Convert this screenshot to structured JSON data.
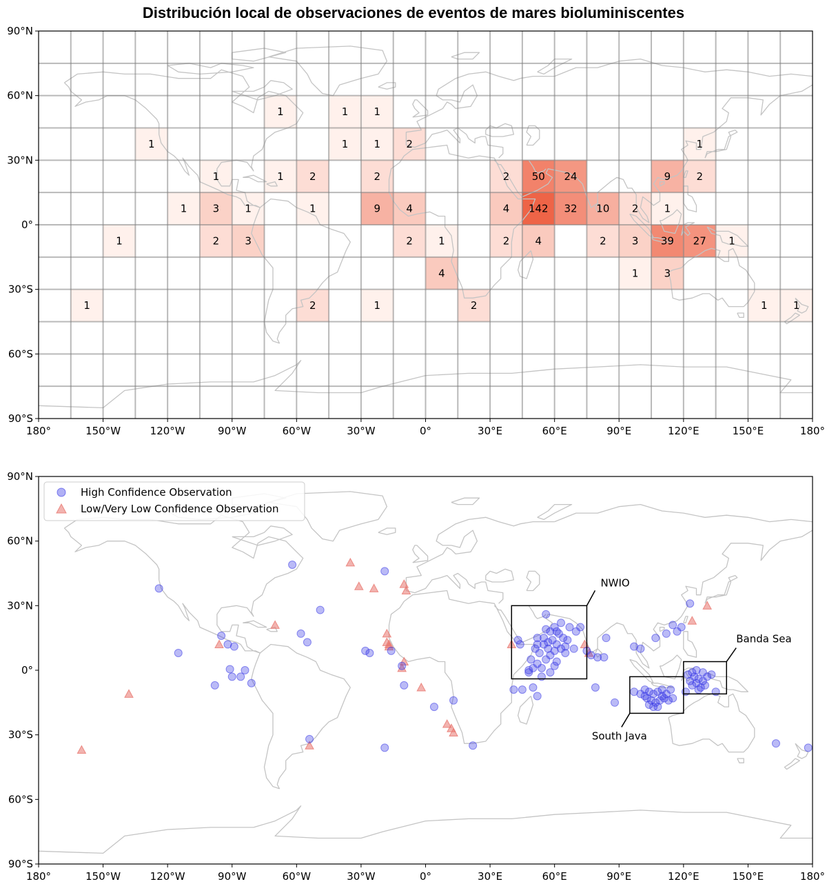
{
  "title": "Distribución local de observaciones de eventos de mares bioluminiscentes",
  "axes": {
    "x_ticks": [
      "180°",
      "150°W",
      "120°W",
      "90°W",
      "60°W",
      "30°W",
      "0°",
      "30°E",
      "60°E",
      "90°E",
      "120°E",
      "150°E",
      "180°"
    ],
    "x_tick_values": [
      -180,
      -150,
      -120,
      -90,
      -60,
      -30,
      0,
      30,
      60,
      90,
      120,
      150,
      180
    ],
    "y_ticks": [
      "90°N",
      "60°N",
      "30°N",
      "0°",
      "30°S",
      "60°S",
      "90°S"
    ],
    "y_tick_values": [
      90,
      60,
      30,
      0,
      -30,
      -60,
      -90
    ],
    "xlim": [
      -180,
      180
    ],
    "ylim": [
      -90,
      90
    ]
  },
  "colors": {
    "frame": "#000000",
    "coastline": "#c4c4c4",
    "grid": "#999999",
    "heat_low": "#fff1ec",
    "heat_high": "#ee6447",
    "high_confidence": "#3a3ae6",
    "low_confidence": "#e8756e"
  },
  "chart_data": [
    {
      "type": "heatmap",
      "title": "Distribución local de observaciones de eventos de mares bioluminiscentes",
      "grid_cell_size_deg": 15,
      "grid": true,
      "cells": [
        {
          "lon": -75,
          "lat": 45,
          "count": 1
        },
        {
          "lon": -45,
          "lat": 45,
          "count": 1
        },
        {
          "lon": -30,
          "lat": 45,
          "count": 1
        },
        {
          "lon": -135,
          "lat": 30,
          "count": 1
        },
        {
          "lon": -45,
          "lat": 30,
          "count": 1
        },
        {
          "lon": -30,
          "lat": 30,
          "count": 1
        },
        {
          "lon": -15,
          "lat": 30,
          "count": 2
        },
        {
          "lon": 120,
          "lat": 30,
          "count": 1
        },
        {
          "lon": -105,
          "lat": 15,
          "count": 1
        },
        {
          "lon": -75,
          "lat": 15,
          "count": 1
        },
        {
          "lon": -60,
          "lat": 15,
          "count": 2
        },
        {
          "lon": -30,
          "lat": 15,
          "count": 2
        },
        {
          "lon": 30,
          "lat": 15,
          "count": 2
        },
        {
          "lon": 45,
          "lat": 15,
          "count": 50
        },
        {
          "lon": 60,
          "lat": 15,
          "count": 24
        },
        {
          "lon": 105,
          "lat": 15,
          "count": 9
        },
        {
          "lon": 120,
          "lat": 15,
          "count": 2
        },
        {
          "lon": -120,
          "lat": 0,
          "count": 1
        },
        {
          "lon": -105,
          "lat": 0,
          "count": 3
        },
        {
          "lon": -90,
          "lat": 0,
          "count": 1
        },
        {
          "lon": -60,
          "lat": 0,
          "count": 1
        },
        {
          "lon": -30,
          "lat": 0,
          "count": 9
        },
        {
          "lon": -15,
          "lat": 0,
          "count": 4
        },
        {
          "lon": 30,
          "lat": 0,
          "count": 4
        },
        {
          "lon": 45,
          "lat": 0,
          "count": 142
        },
        {
          "lon": 60,
          "lat": 0,
          "count": 32
        },
        {
          "lon": 75,
          "lat": 0,
          "count": 10
        },
        {
          "lon": 90,
          "lat": 0,
          "count": 2
        },
        {
          "lon": 105,
          "lat": 0,
          "count": 1
        },
        {
          "lon": -150,
          "lat": -15,
          "count": 1
        },
        {
          "lon": -105,
          "lat": -15,
          "count": 2
        },
        {
          "lon": -90,
          "lat": -15,
          "count": 3
        },
        {
          "lon": -15,
          "lat": -15,
          "count": 2
        },
        {
          "lon": 0,
          "lat": -15,
          "count": 1
        },
        {
          "lon": 30,
          "lat": -15,
          "count": 2
        },
        {
          "lon": 45,
          "lat": -15,
          "count": 4
        },
        {
          "lon": 75,
          "lat": -15,
          "count": 2
        },
        {
          "lon": 90,
          "lat": -15,
          "count": 3
        },
        {
          "lon": 105,
          "lat": -15,
          "count": 39
        },
        {
          "lon": 120,
          "lat": -15,
          "count": 27
        },
        {
          "lon": 135,
          "lat": -15,
          "count": 1
        },
        {
          "lon": 0,
          "lat": -30,
          "count": 4
        },
        {
          "lon": 90,
          "lat": -30,
          "count": 1
        },
        {
          "lon": 105,
          "lat": -30,
          "count": 3
        },
        {
          "lon": -165,
          "lat": -45,
          "count": 1
        },
        {
          "lon": -60,
          "lat": -45,
          "count": 2
        },
        {
          "lon": -30,
          "lat": -45,
          "count": 1
        },
        {
          "lon": 15,
          "lat": -45,
          "count": 2
        },
        {
          "lon": 150,
          "lat": -45,
          "count": 1
        },
        {
          "lon": 165,
          "lat": -45,
          "count": 1
        }
      ]
    },
    {
      "type": "scatter",
      "legend_location": "upper-left",
      "series": [
        {
          "name": "High Confidence Observation",
          "marker": "circle",
          "points": [
            [
              -62,
              49
            ],
            [
              -124,
              38
            ],
            [
              -115,
              8
            ],
            [
              -95,
              16
            ],
            [
              -92,
              12
            ],
            [
              -89,
              11
            ],
            [
              -91,
              0.5
            ],
            [
              -90,
              -3
            ],
            [
              -86,
              -3
            ],
            [
              -84,
              0
            ],
            [
              -81,
              -6
            ],
            [
              -98,
              -7
            ],
            [
              -58,
              17
            ],
            [
              -55,
              13
            ],
            [
              -49,
              28
            ],
            [
              -54,
              -32
            ],
            [
              -28,
              9
            ],
            [
              -26,
              8
            ],
            [
              -19,
              46
            ],
            [
              -19,
              -36
            ],
            [
              -16,
              9
            ],
            [
              -10,
              -7
            ],
            [
              -11,
              2
            ],
            [
              4,
              -17
            ],
            [
              13,
              -14
            ],
            [
              22,
              -35
            ],
            [
              41,
              -9
            ],
            [
              45,
              -9
            ],
            [
              50,
              -8
            ],
            [
              52,
              -12
            ],
            [
              48,
              0
            ],
            [
              44,
              12
            ],
            [
              43,
              14
            ],
            [
              52,
              12
            ],
            [
              55,
              15
            ],
            [
              58,
              18
            ],
            [
              60,
              20
            ],
            [
              56,
              26
            ],
            [
              63,
              22
            ],
            [
              67,
              20
            ],
            [
              70,
              18
            ],
            [
              72,
              20
            ],
            [
              56,
              5
            ],
            [
              52,
              3
            ],
            [
              50,
              1
            ],
            [
              48,
              -1
            ],
            [
              54,
              -3
            ],
            [
              58,
              -1
            ],
            [
              61,
              4
            ],
            [
              65,
              8
            ],
            [
              69,
              10
            ],
            [
              53,
              8
            ],
            [
              57,
              10
            ],
            [
              61,
              12
            ],
            [
              64,
              15
            ],
            [
              59,
              14
            ],
            [
              55,
              12
            ],
            [
              51,
              10
            ],
            [
              62,
              17
            ],
            [
              66,
              14
            ],
            [
              58,
              7
            ],
            [
              54,
              1
            ],
            [
              60,
              2
            ],
            [
              63,
              10
            ],
            [
              49,
              5
            ],
            [
              52,
              15
            ],
            [
              56,
              19
            ],
            [
              60,
              9
            ],
            [
              57,
              13
            ],
            [
              61,
              18
            ],
            [
              65,
              11
            ],
            [
              77,
              7
            ],
            [
              80,
              6
            ],
            [
              83,
              6
            ],
            [
              75,
              9
            ],
            [
              84,
              15
            ],
            [
              79,
              -8
            ],
            [
              88,
              -15
            ],
            [
              97,
              11
            ],
            [
              100,
              10
            ],
            [
              107,
              15
            ],
            [
              112,
              17
            ],
            [
              115,
              21
            ],
            [
              117,
              18
            ],
            [
              119,
              20
            ],
            [
              123,
              31
            ],
            [
              97,
              -10
            ],
            [
              100,
              -11
            ],
            [
              102,
              -9
            ],
            [
              104,
              -10
            ],
            [
              106,
              -11
            ],
            [
              108,
              -10
            ],
            [
              110,
              -12
            ],
            [
              112,
              -11
            ],
            [
              114,
              -9
            ],
            [
              103,
              -13
            ],
            [
              105,
              -14
            ],
            [
              107,
              -15
            ],
            [
              109,
              -14
            ],
            [
              111,
              -13
            ],
            [
              113,
              -14
            ],
            [
              104,
              -16
            ],
            [
              106,
              -17
            ],
            [
              108,
              -17
            ],
            [
              115,
              -13
            ],
            [
              110,
              -9
            ],
            [
              102,
              -12
            ],
            [
              121,
              -10
            ],
            [
              123,
              -5
            ],
            [
              124,
              -1
            ],
            [
              125,
              -3
            ],
            [
              126,
              -6
            ],
            [
              127,
              -4
            ],
            [
              128,
              -8
            ],
            [
              129,
              -5
            ],
            [
              130,
              -7
            ],
            [
              126,
              0
            ],
            [
              124,
              -7
            ],
            [
              127,
              -9
            ],
            [
              133,
              -2
            ],
            [
              135,
              -10
            ],
            [
              122,
              -2
            ],
            [
              129,
              -1
            ],
            [
              131,
              -3
            ],
            [
              163,
              -34
            ],
            [
              178,
              -36
            ]
          ]
        },
        {
          "name": "Low/Very Low Confidence Observation",
          "marker": "triangle",
          "points": [
            [
              -160,
              -37
            ],
            [
              -138,
              -11
            ],
            [
              -96,
              12
            ],
            [
              -70,
              21
            ],
            [
              -54,
              -35
            ],
            [
              -35,
              50
            ],
            [
              -31,
              39
            ],
            [
              -24,
              38
            ],
            [
              -18,
              17
            ],
            [
              -18,
              13
            ],
            [
              -17,
              12
            ],
            [
              -17,
              11
            ],
            [
              -10,
              40
            ],
            [
              -9,
              37
            ],
            [
              -10,
              4
            ],
            [
              -11,
              1
            ],
            [
              -2,
              -8
            ],
            [
              10,
              -25
            ],
            [
              12,
              -27
            ],
            [
              13,
              -29
            ],
            [
              40,
              12
            ],
            [
              74,
              12
            ],
            [
              76,
              8
            ],
            [
              124,
              23
            ],
            [
              131,
              30
            ]
          ]
        }
      ],
      "annotations": [
        {
          "label": "NWIO",
          "box": {
            "lon_min": 40,
            "lon_max": 75,
            "lat_min": -4,
            "lat_max": 30
          }
        },
        {
          "label": "South Java",
          "box": {
            "lon_min": 95,
            "lon_max": 120,
            "lat_min": -20,
            "lat_max": -3
          }
        },
        {
          "label": "Banda Sea",
          "box": {
            "lon_min": 120,
            "lon_max": 140,
            "lat_min": -11,
            "lat_max": 4
          }
        }
      ]
    }
  ]
}
